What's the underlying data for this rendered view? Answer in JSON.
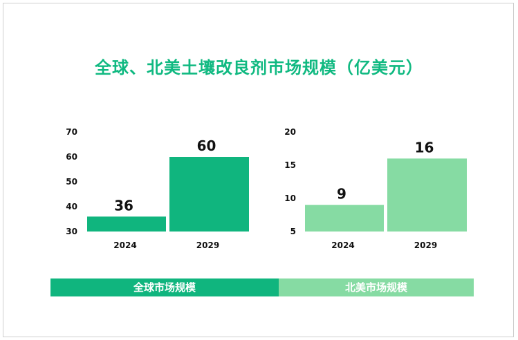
{
  "title": "全球、北美土壤改良剂市场规模（亿美元）",
  "colors": {
    "global": "#10b57e",
    "north_america": "#86dba3",
    "title": "#10b981"
  },
  "legend": {
    "global_label": "全球市场规模",
    "north_america_label": "北美市场规模"
  },
  "chart_data": [
    {
      "type": "bar",
      "name": "全球市场规模",
      "categories": [
        "2024",
        "2029"
      ],
      "values": [
        36,
        60
      ],
      "ylim": [
        30,
        70
      ],
      "yticks": [
        30,
        40,
        50,
        60,
        70
      ],
      "color": "#10b57e"
    },
    {
      "type": "bar",
      "name": "北美市场规模",
      "categories": [
        "2024",
        "2029"
      ],
      "values": [
        9,
        16
      ],
      "ylim": [
        5,
        20
      ],
      "yticks": [
        5,
        10,
        15,
        20
      ],
      "color": "#86dba3"
    }
  ]
}
